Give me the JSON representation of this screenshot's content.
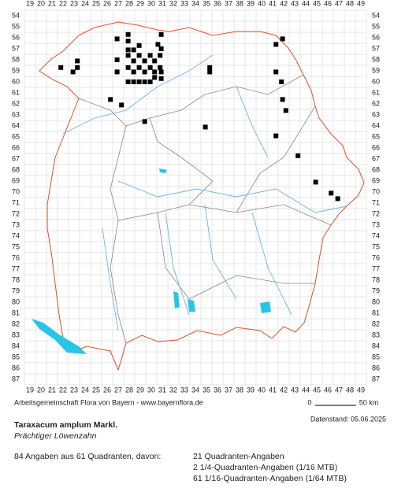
{
  "map": {
    "column_labels": [
      19,
      20,
      21,
      22,
      23,
      24,
      25,
      26,
      27,
      28,
      29,
      30,
      31,
      32,
      33,
      34,
      35,
      36,
      37,
      38,
      39,
      40,
      41,
      42,
      43,
      44,
      45,
      46,
      47,
      48,
      49
    ],
    "row_labels": [
      54,
      55,
      56,
      57,
      58,
      59,
      60,
      61,
      62,
      63,
      64,
      65,
      66,
      67,
      68,
      69,
      70,
      71,
      72,
      73,
      74,
      75,
      76,
      77,
      78,
      79,
      80,
      81,
      82,
      83,
      84,
      85,
      86,
      87
    ],
    "points": [
      {
        "x": 30.9,
        "y": 55.7
      },
      {
        "x": 27.9,
        "y": 55.7
      },
      {
        "x": 26.9,
        "y": 56.1
      },
      {
        "x": 27.9,
        "y": 56.3
      },
      {
        "x": 28.9,
        "y": 56.7
      },
      {
        "x": 30.6,
        "y": 56.6
      },
      {
        "x": 27.9,
        "y": 57.1
      },
      {
        "x": 28.4,
        "y": 57.1
      },
      {
        "x": 30.9,
        "y": 57.0
      },
      {
        "x": 41.9,
        "y": 56.1
      },
      {
        "x": 41.3,
        "y": 56.6
      },
      {
        "x": 23.3,
        "y": 58.1
      },
      {
        "x": 26.9,
        "y": 58.0
      },
      {
        "x": 27.9,
        "y": 57.6
      },
      {
        "x": 28.9,
        "y": 57.6
      },
      {
        "x": 29.9,
        "y": 57.6
      },
      {
        "x": 30.8,
        "y": 57.6
      },
      {
        "x": 28.4,
        "y": 58.1
      },
      {
        "x": 29.4,
        "y": 58.1
      },
      {
        "x": 30.3,
        "y": 58.1
      },
      {
        "x": 21.8,
        "y": 58.7
      },
      {
        "x": 22.9,
        "y": 59.1
      },
      {
        "x": 23.3,
        "y": 58.7
      },
      {
        "x": 26.9,
        "y": 59.1
      },
      {
        "x": 27.9,
        "y": 58.7
      },
      {
        "x": 28.9,
        "y": 58.7
      },
      {
        "x": 29.9,
        "y": 58.7
      },
      {
        "x": 30.8,
        "y": 58.7
      },
      {
        "x": 28.4,
        "y": 59.1
      },
      {
        "x": 29.4,
        "y": 59.1
      },
      {
        "x": 30.3,
        "y": 59.1
      },
      {
        "x": 30.9,
        "y": 59.1
      },
      {
        "x": 35.3,
        "y": 58.7
      },
      {
        "x": 35.3,
        "y": 59.1
      },
      {
        "x": 41.3,
        "y": 59.1
      },
      {
        "x": 27.9,
        "y": 60.0
      },
      {
        "x": 28.4,
        "y": 60.0
      },
      {
        "x": 28.9,
        "y": 60.0
      },
      {
        "x": 29.4,
        "y": 60.0
      },
      {
        "x": 29.9,
        "y": 60.0
      },
      {
        "x": 30.3,
        "y": 59.6
      },
      {
        "x": 30.9,
        "y": 59.7
      },
      {
        "x": 41.8,
        "y": 60.0
      },
      {
        "x": 26.3,
        "y": 61.6
      },
      {
        "x": 41.9,
        "y": 61.6
      },
      {
        "x": 27.3,
        "y": 62.1
      },
      {
        "x": 42.2,
        "y": 62.6
      },
      {
        "x": 29.4,
        "y": 63.6
      },
      {
        "x": 34.9,
        "y": 64.1
      },
      {
        "x": 41.3,
        "y": 64.9
      },
      {
        "x": 43.3,
        "y": 66.7
      },
      {
        "x": 44.9,
        "y": 69.1
      },
      {
        "x": 46.3,
        "y": 70.1
      },
      {
        "x": 46.9,
        "y": 70.6
      }
    ]
  },
  "footer": {
    "credit": "Arbeitsgemeinschaft Flora von Bayern - www.bayernflora.de",
    "scale_start": "0",
    "scale_end": "50 km",
    "date": "Datenstand: 05.06.2025",
    "title": "Taraxacum amplum Markl.",
    "subtitle": "Prächtiger Löwenzahn",
    "summary": "84 Angaben aus 61 Quadranten, davon:",
    "details": [
      "21 Quadranten-Angaben",
      "2 1/4-Quadranten-Angaben (1/16 MTB)",
      "61 1/16-Quadranten-Angaben (1/64 MTB)"
    ]
  }
}
